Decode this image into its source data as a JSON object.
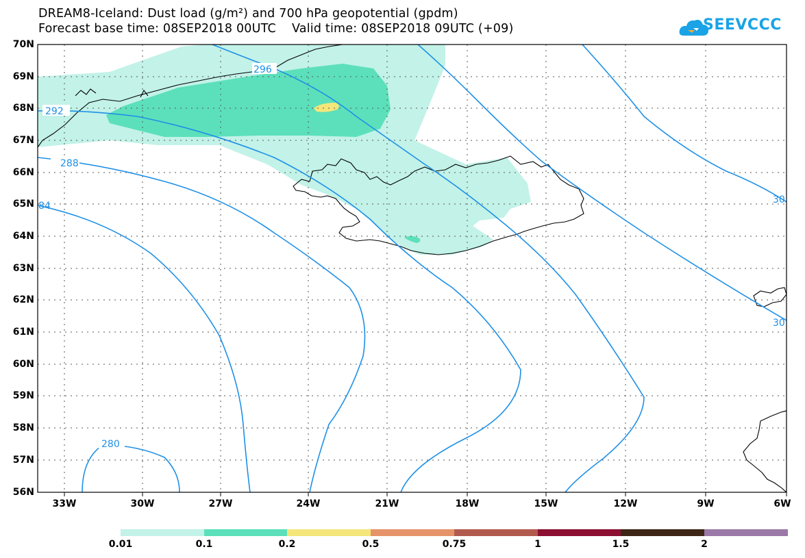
{
  "title_line1": "DREAM8-Iceland: Dust load (g/m²) and 700 hPa geopotential (gpdm)",
  "title_line2": "Forecast base time: 08SEP2018 00UTC    Valid time: 08SEP2018 09UTC (+09)",
  "logo_text": "SEEVCCC",
  "lat_labels": [
    "70N",
    "69N",
    "68N",
    "67N",
    "66N",
    "65N",
    "64N",
    "63N",
    "62N",
    "61N",
    "60N",
    "59N",
    "58N",
    "57N",
    "56N"
  ],
  "lon_labels": [
    "33W",
    "30W",
    "27W",
    "24W",
    "21W",
    "18W",
    "15W",
    "12W",
    "9W",
    "6W"
  ],
  "contour_labels": [
    "296",
    "292",
    "288",
    "84",
    "280",
    "30",
    "30"
  ],
  "colorbar": {
    "labels": [
      "0.01",
      "0.1",
      "0.2",
      "0.5",
      "0.75",
      "1",
      "1.5",
      "2"
    ],
    "colors": [
      "#c2f2e8",
      "#5ce0bb",
      "#f5e67a",
      "#e6936a",
      "#b35a4e",
      "#8c0f32",
      "#3d2616",
      "#9a79a8"
    ]
  },
  "colors": {
    "contour": "#1e90e6",
    "dust_light": "#c2f2e8",
    "dust_mid": "#5ce0bb",
    "dust_high": "#f5e67a"
  }
}
